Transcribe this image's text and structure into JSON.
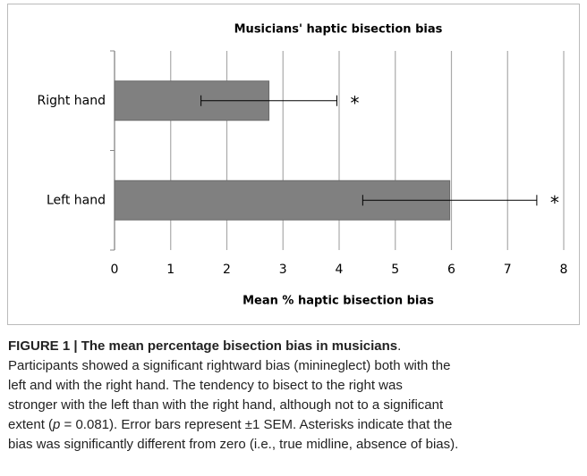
{
  "chart_data": {
    "type": "hbar",
    "title": "Musicians' haptic bisection bias",
    "x_label": "Mean % haptic bisection bias",
    "categories": [
      "Right hand",
      "Left hand"
    ],
    "values": [
      2.75,
      5.97
    ],
    "errors": [
      1.21,
      1.55
    ],
    "color": "#808080",
    "annotations": [
      "*",
      "*"
    ],
    "xlim": [
      0,
      8
    ],
    "xticks": [
      0,
      1,
      2,
      3,
      4,
      5,
      6,
      7,
      8
    ],
    "grid": true
  },
  "caption": {
    "heading": "FIGURE 1 | The mean percentage bisection bias in musicians",
    "heading_end": ".",
    "lines": [
      [
        "Participants showed a significant rightward bias (minineglect) both with the"
      ],
      [
        "left and with the right hand. The tendency to bisect to the right was"
      ],
      [
        "stronger with the left than with the right hand, although not to a significant"
      ],
      [
        "extent (",
        "p",
        " = 0.081). Error bars represent ±1 SEM. Asterisks indicate that the"
      ],
      [
        "bias was significantly different from zero (i.e., true midline, absence of bias)."
      ]
    ]
  }
}
